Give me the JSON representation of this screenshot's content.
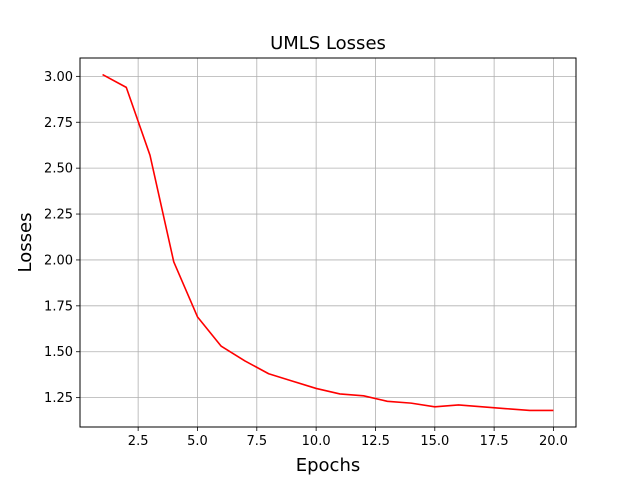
{
  "chart_data": {
    "type": "line",
    "title": "UMLS Losses",
    "xlabel": "Epochs",
    "ylabel": "Losses",
    "xlim": [
      0.05,
      20.95
    ],
    "ylim": [
      1.09,
      3.1
    ],
    "x_ticks": [
      2.5,
      5.0,
      7.5,
      10.0,
      12.5,
      15.0,
      17.5,
      20.0
    ],
    "x_tick_labels": [
      "2.5",
      "5.0",
      "7.5",
      "10.0",
      "12.5",
      "15.0",
      "17.5",
      "20.0"
    ],
    "y_ticks": [
      1.25,
      1.5,
      1.75,
      2.0,
      2.25,
      2.5,
      2.75,
      3.0
    ],
    "y_tick_labels": [
      "1.25",
      "1.50",
      "1.75",
      "2.00",
      "2.25",
      "2.50",
      "2.75",
      "3.00"
    ],
    "grid": true,
    "series": [
      {
        "color": "#ff0000",
        "x": [
          1,
          2,
          3,
          4,
          5,
          6,
          7,
          8,
          9,
          10,
          11,
          12,
          13,
          14,
          15,
          16,
          17,
          18,
          19,
          20
        ],
        "values": [
          3.01,
          2.94,
          2.57,
          1.99,
          1.69,
          1.53,
          1.45,
          1.38,
          1.34,
          1.3,
          1.27,
          1.26,
          1.23,
          1.22,
          1.2,
          1.21,
          1.2,
          1.19,
          1.18,
          1.18
        ]
      }
    ]
  }
}
